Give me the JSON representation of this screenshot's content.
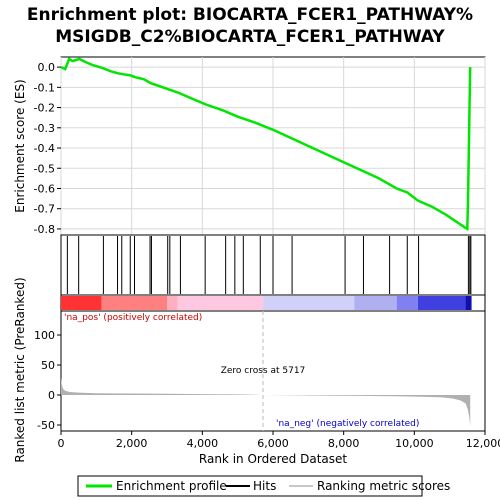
{
  "chart_data": [
    {
      "type": "line",
      "title": [
        "Enrichment plot: BIOCARTA_FCER1_PATHWAY%",
        "MSIGDB_C2%BIOCARTA_FCER1_PATHWAY"
      ],
      "ylabel": "Enrichment score (ES)",
      "ylim": [
        -0.83,
        0.05
      ],
      "xlim": [
        0,
        12000
      ],
      "yticks": [
        "0.0",
        "-0.1",
        "-0.2",
        "-0.3",
        "-0.4",
        "-0.5",
        "-0.6",
        "-0.7",
        "-0.8"
      ],
      "ytick_values": [
        0.0,
        -0.1,
        -0.2,
        -0.3,
        -0.4,
        -0.5,
        -0.6,
        -0.7,
        -0.8
      ],
      "grid": true,
      "color": "#00e600",
      "series": [
        {
          "name": "Enrichment profile",
          "x": [
            0,
            120,
            230,
            330,
            520,
            700,
            900,
            1180,
            1400,
            1600,
            1750,
            1950,
            2100,
            2350,
            2550,
            2800,
            3050,
            3300,
            3700,
            4100,
            4600,
            5000,
            5500,
            6000,
            6500,
            7000,
            7500,
            8000,
            8500,
            9000,
            9500,
            9800,
            10100,
            10500,
            10900,
            11150,
            11450,
            11500,
            11520,
            11540,
            11560,
            11580
          ],
          "y": [
            0.0,
            -0.01,
            0.04,
            0.03,
            0.04,
            0.025,
            0.01,
            -0.005,
            -0.02,
            -0.03,
            -0.035,
            -0.04,
            -0.05,
            -0.06,
            -0.08,
            -0.095,
            -0.11,
            -0.125,
            -0.155,
            -0.185,
            -0.215,
            -0.245,
            -0.275,
            -0.31,
            -0.35,
            -0.39,
            -0.43,
            -0.47,
            -0.51,
            -0.55,
            -0.6,
            -0.62,
            -0.66,
            -0.69,
            -0.73,
            -0.76,
            -0.795,
            -0.8,
            -0.66,
            -0.45,
            -0.2,
            0.0
          ]
        }
      ]
    },
    {
      "type": "bar",
      "title": "",
      "xlabel": "",
      "ylabel": "",
      "hits_label": "Hits",
      "hit_positions": [
        180,
        500,
        1200,
        1600,
        1720,
        1960,
        2080,
        2520,
        2560,
        3020,
        3080,
        3380,
        4080,
        4660,
        4920,
        5160,
        5640,
        6000,
        6540,
        8040,
        8560,
        9300,
        9800,
        10120,
        11530,
        11570,
        11600
      ],
      "colorbar": [
        {
          "from": 0,
          "to": 1150,
          "color": "#ff3333"
        },
        {
          "from": 1150,
          "to": 3000,
          "color": "#ff8080"
        },
        {
          "from": 3000,
          "to": 3300,
          "color": "#ffb0c0"
        },
        {
          "from": 3300,
          "to": 5720,
          "color": "#ffc8e0"
        },
        {
          "from": 5720,
          "to": 8300,
          "color": "#d0d0f8"
        },
        {
          "from": 8300,
          "to": 9500,
          "color": "#b0b0f0"
        },
        {
          "from": 9500,
          "to": 10100,
          "color": "#8080f0"
        },
        {
          "from": 10100,
          "to": 11450,
          "color": "#4040e0"
        },
        {
          "from": 11450,
          "to": 11620,
          "color": "#1010b0"
        }
      ]
    },
    {
      "type": "area",
      "xlabel": "Rank in Ordered Dataset",
      "ylabel": "Ranked list metric (PreRanked)",
      "xlim": [
        0,
        12000
      ],
      "ylim": [
        -60,
        140
      ],
      "xticks": [
        "0",
        "2,000",
        "4,000",
        "6,000",
        "8,000",
        "10,000",
        "12,000"
      ],
      "xtick_values": [
        0,
        2000,
        4000,
        6000,
        8000,
        10000,
        12000
      ],
      "yticks": [
        "100",
        "50",
        "0",
        "-50"
      ],
      "ytick_values": [
        100,
        50,
        0,
        -50
      ],
      "series": [
        {
          "name": "Ranking metric scores",
          "x": [
            0,
            20,
            60,
            120,
            250,
            500,
            1000,
            2000,
            3000,
            4000,
            5000,
            5717,
            6500,
            7500,
            8500,
            9500,
            10200,
            10800,
            11100,
            11300,
            11450,
            11520,
            11560,
            11580
          ],
          "y": [
            30,
            18,
            10,
            7,
            5,
            4,
            3,
            2.5,
            2,
            1.5,
            1,
            0,
            -0.5,
            -1,
            -1.5,
            -2,
            -3,
            -4,
            -6,
            -9,
            -14,
            -25,
            -40,
            -52
          ]
        }
      ],
      "pos_label": "'na_pos' (positively correlated)",
      "neg_label": "'na_neg' (negatively correlated)",
      "zero_cross_label": "Zero cross at 5717",
      "zero_cross": 5717
    }
  ],
  "legend": {
    "items": [
      {
        "label": "Enrichment profile",
        "color": "#00e600"
      },
      {
        "label": "Hits",
        "color": "#000000"
      },
      {
        "label": "Ranking metric scores",
        "color": "#c8c8c8"
      }
    ]
  },
  "colors": {
    "es_line": "#00e600",
    "grid": "#d8d8d8",
    "pos_text": "#cc0000",
    "neg_text": "#0000cc",
    "metric_fill": "#b0b0b0"
  }
}
